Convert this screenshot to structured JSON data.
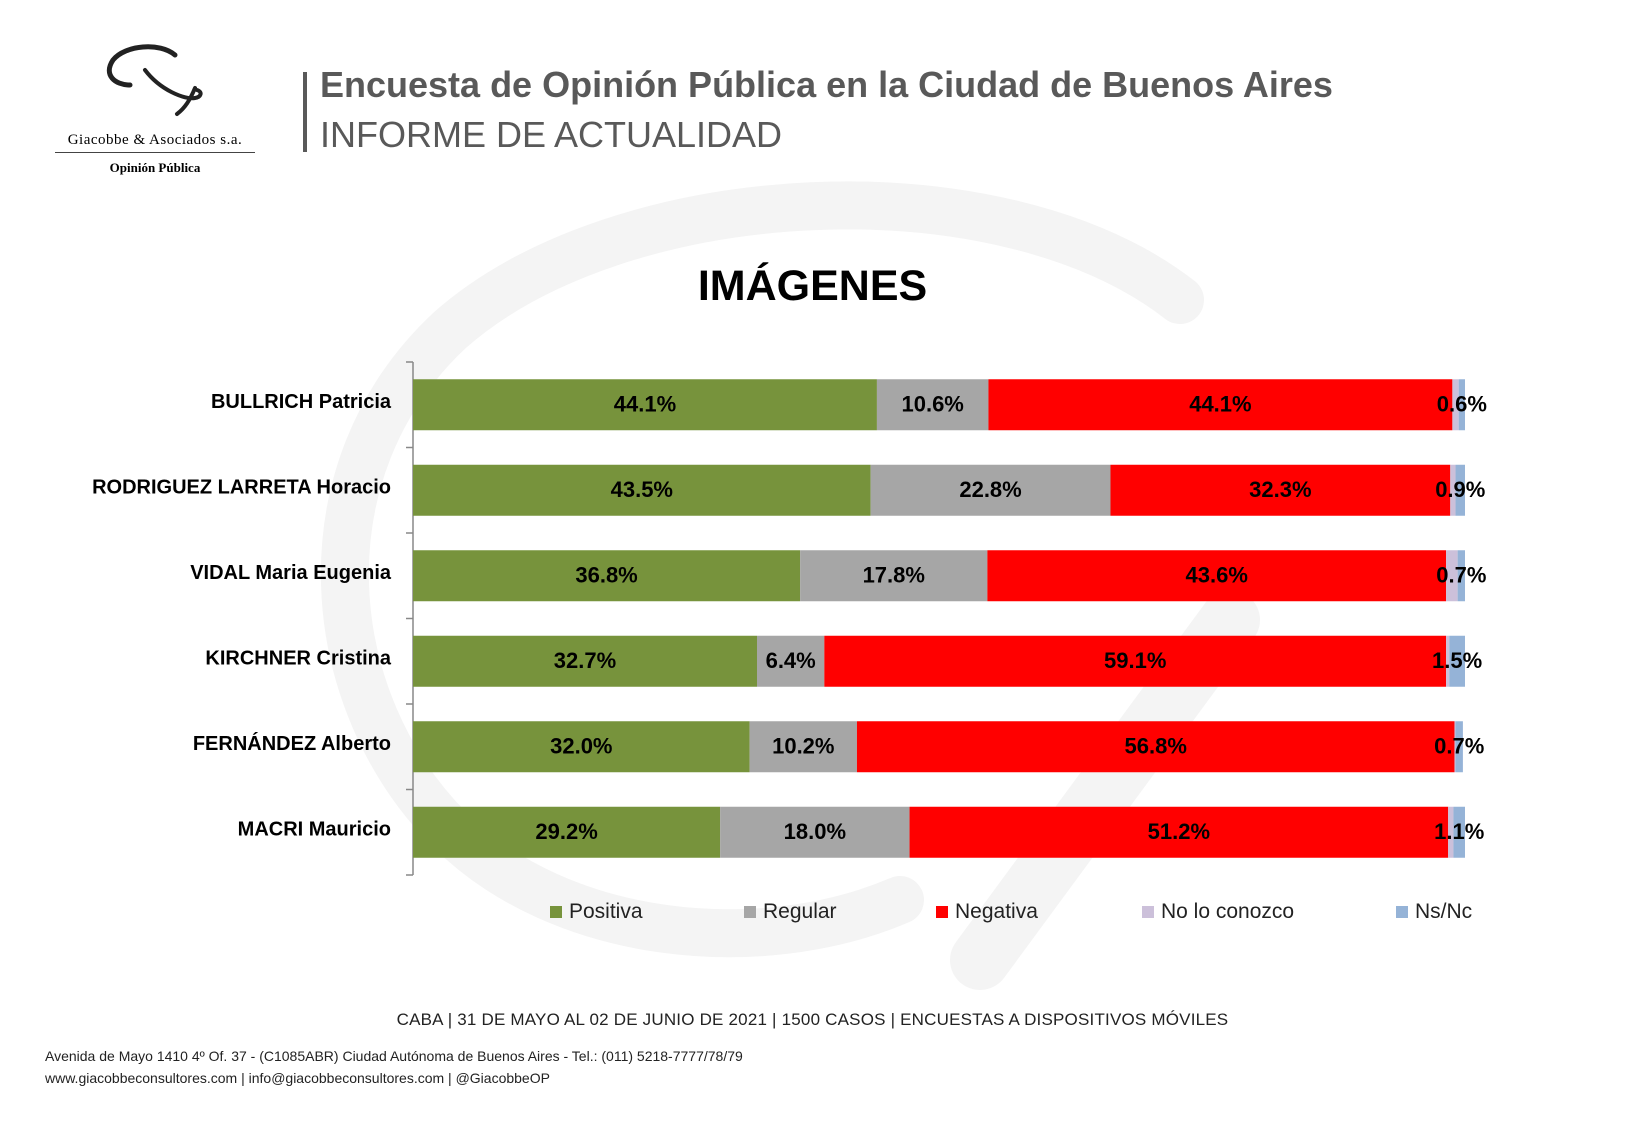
{
  "header": {
    "title": "Encuesta de Opinión Pública en la Ciudad de Buenos Aires",
    "subtitle": "INFORME DE ACTUALIDAD"
  },
  "logo": {
    "company": "Giacobbe & Asociados s.a.",
    "tagline": "Opinión Pública"
  },
  "chart_data": {
    "type": "bar",
    "orientation": "horizontal",
    "stacked": true,
    "title": "IMÁGENES",
    "categories": [
      "BULLRICH Patricia",
      "RODRIGUEZ LARRETA Horacio",
      "VIDAL Maria Eugenia",
      "KIRCHNER Cristina",
      "FERNÁNDEZ Alberto",
      "MACRI Mauricio"
    ],
    "series": [
      {
        "name": "Positiva",
        "color": "#77933C",
        "values": [
          44.1,
          43.5,
          36.8,
          32.7,
          32.0,
          29.2
        ]
      },
      {
        "name": "Regular",
        "color": "#A6A6A6",
        "values": [
          10.6,
          22.8,
          17.8,
          6.4,
          10.2,
          18.0
        ]
      },
      {
        "name": "Negativa",
        "color": "#FF0000",
        "values": [
          44.1,
          32.3,
          43.6,
          59.1,
          56.8,
          51.2
        ]
      },
      {
        "name": "No lo conozco",
        "color": "#CCC0DA",
        "values": [
          0.6,
          0.5,
          1.1,
          0.3,
          0.1,
          0.5
        ]
      },
      {
        "name": "Ns/Nc",
        "color": "#95B3D7",
        "values": [
          0.6,
          0.9,
          0.7,
          1.5,
          0.7,
          1.1
        ]
      }
    ],
    "data_labels": {
      "shown_for": [
        "Positiva",
        "Regular",
        "Negativa",
        "Ns/Nc"
      ],
      "format": "percent_one_decimal"
    },
    "xlim": [
      0,
      100
    ],
    "grid": false,
    "legend": "bottom"
  },
  "footer": {
    "survey_info": "CABA | 31 DE MAYO AL 02 DE JUNIO DE 2021 | 1500 CASOS | ENCUESTAS A DISPOSITIVOS MÓVILES",
    "address": "Avenida de Mayo 1410 4º Of. 37 - (C1085ABR) Ciudad Autónoma de Buenos Aires - Tel.: (011) 5218-7777/78/79",
    "web": "www.giacobbeconsultores.com | info@giacobbeconsultores.com | @GiacobbeOP"
  }
}
